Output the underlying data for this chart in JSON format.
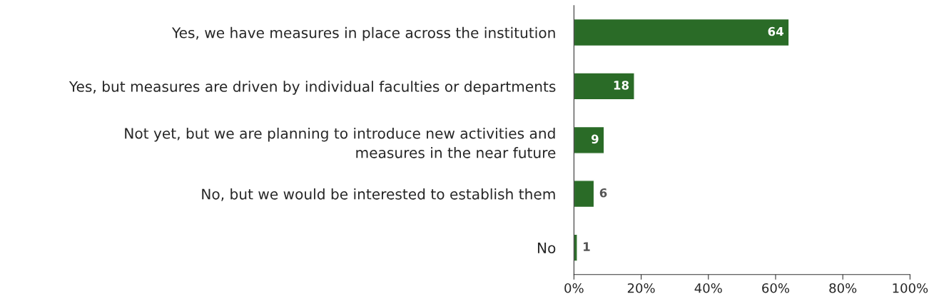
{
  "chart_data": {
    "type": "bar",
    "orientation": "horizontal",
    "categories": [
      "Yes, we have measures in place across the institution",
      "Yes, but measures are driven by individual faculties or departments",
      "Not yet, but we are planning to introduce new activities and\nmeasures in the near future",
      "No, but we would be interested to establish them",
      "No"
    ],
    "values": [
      64,
      18,
      9,
      6,
      1
    ],
    "color": "#2a6b27",
    "xlim": [
      0,
      100
    ],
    "xticks": [
      {
        "value": 0,
        "label": "0%"
      },
      {
        "value": 20,
        "label": "20%"
      },
      {
        "value": 40,
        "label": "40%"
      },
      {
        "value": 60,
        "label": "60%"
      },
      {
        "value": 80,
        "label": "80%"
      },
      {
        "value": 100,
        "label": "100%"
      }
    ],
    "data_labels": true,
    "grid": false,
    "legend": false
  }
}
